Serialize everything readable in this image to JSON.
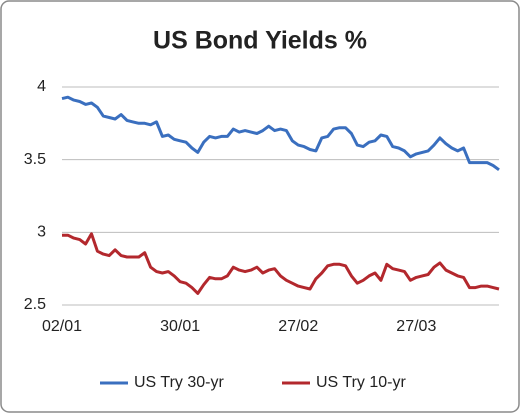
{
  "chart_data": {
    "type": "line",
    "title": "US Bond Yields %",
    "categories": [
      "02/01",
      null,
      null,
      null,
      null,
      null,
      null,
      null,
      null,
      null,
      null,
      null,
      null,
      null,
      null,
      null,
      null,
      null,
      null,
      null,
      "30/01",
      null,
      null,
      null,
      null,
      null,
      null,
      null,
      null,
      null,
      null,
      null,
      null,
      null,
      null,
      null,
      null,
      null,
      null,
      null,
      "27/02",
      null,
      null,
      null,
      null,
      null,
      null,
      null,
      null,
      null,
      null,
      null,
      null,
      null,
      null,
      null,
      null,
      null,
      null,
      null,
      "27/03",
      null,
      null,
      null,
      null,
      null,
      null,
      null,
      null,
      null,
      null,
      null,
      null,
      null,
      null
    ],
    "series": [
      {
        "name": "US Try 30-yr",
        "color": "#3a6fbf",
        "values": [
          3.92,
          3.93,
          3.91,
          3.9,
          3.88,
          3.89,
          3.86,
          3.8,
          3.79,
          3.78,
          3.81,
          3.77,
          3.76,
          3.75,
          3.75,
          3.74,
          3.76,
          3.66,
          3.67,
          3.64,
          3.63,
          3.62,
          3.58,
          3.55,
          3.62,
          3.66,
          3.65,
          3.66,
          3.66,
          3.71,
          3.69,
          3.7,
          3.69,
          3.68,
          3.7,
          3.73,
          3.7,
          3.71,
          3.7,
          3.63,
          3.6,
          3.59,
          3.57,
          3.56,
          3.65,
          3.66,
          3.71,
          3.72,
          3.72,
          3.68,
          3.6,
          3.59,
          3.62,
          3.63,
          3.67,
          3.66,
          3.59,
          3.58,
          3.56,
          3.52,
          3.54,
          3.55,
          3.56,
          3.6,
          3.65,
          3.61,
          3.58,
          3.56,
          3.58,
          3.48,
          3.48,
          3.48,
          3.48,
          3.46,
          3.43
        ]
      },
      {
        "name": "US Try 10-yr",
        "color": "#b3282d",
        "values": [
          2.98,
          2.98,
          2.96,
          2.95,
          2.92,
          2.99,
          2.87,
          2.85,
          2.84,
          2.88,
          2.84,
          2.83,
          2.83,
          2.83,
          2.86,
          2.76,
          2.73,
          2.72,
          2.73,
          2.7,
          2.66,
          2.65,
          2.62,
          2.58,
          2.64,
          2.69,
          2.68,
          2.68,
          2.7,
          2.76,
          2.74,
          2.73,
          2.74,
          2.76,
          2.72,
          2.74,
          2.75,
          2.7,
          2.67,
          2.65,
          2.63,
          2.62,
          2.61,
          2.68,
          2.72,
          2.77,
          2.78,
          2.78,
          2.77,
          2.7,
          2.65,
          2.67,
          2.7,
          2.72,
          2.67,
          2.78,
          2.75,
          2.74,
          2.73,
          2.67,
          2.69,
          2.7,
          2.71,
          2.76,
          2.79,
          2.74,
          2.72,
          2.7,
          2.69,
          2.62,
          2.62,
          2.63,
          2.63,
          2.62,
          2.61
        ]
      }
    ],
    "ylim": [
      2.5,
      4
    ],
    "yticks": [
      2.5,
      3,
      3.5,
      4
    ],
    "grid": true,
    "legend": "bottom"
  }
}
